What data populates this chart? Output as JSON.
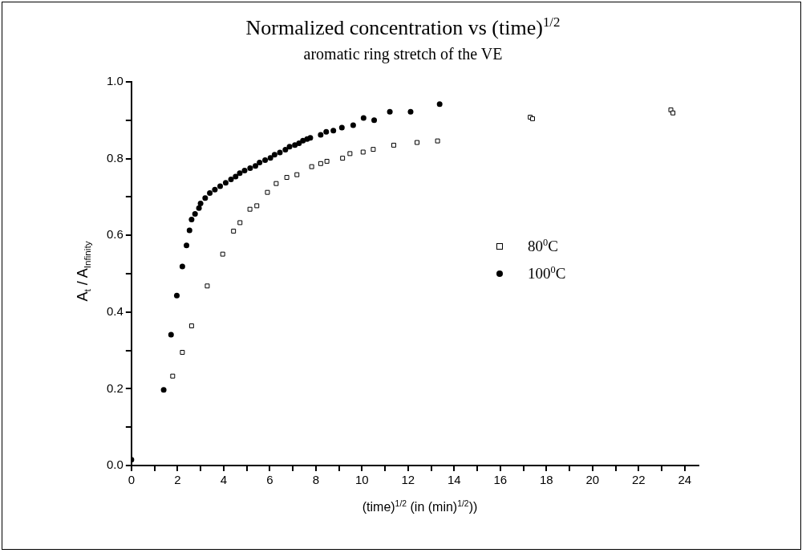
{
  "chart_data": {
    "type": "scatter",
    "title": "Normalized concentration vs (time)$^{1/2}$",
    "subtitle": "aromatic ring stretch of the VE",
    "xlabel": "(time)$^{1/2}$  (in (min)$^{1/2}$))",
    "ylabel": "A$_{t}$ / A$_{Infinity}$",
    "xlim": [
      0,
      24.6
    ],
    "ylim": [
      0,
      1
    ],
    "xticks": [
      0,
      {
        "value": 1,
        "label": null
      },
      2,
      {
        "value": 3,
        "label": null
      },
      4,
      {
        "value": 5,
        "label": null
      },
      6,
      {
        "value": 7,
        "label": null
      },
      8,
      {
        "value": 9,
        "label": null
      },
      10,
      {
        "value": 11,
        "label": null
      },
      12,
      {
        "value": 13,
        "label": null
      },
      14,
      {
        "value": 15,
        "label": null
      },
      16,
      {
        "value": 17,
        "label": null
      },
      18,
      {
        "value": 19,
        "label": null
      },
      20,
      {
        "value": 21,
        "label": null
      },
      22,
      {
        "value": 23,
        "label": null
      },
      24
    ],
    "yticks": [
      {
        "value": 0,
        "label": "0.0"
      },
      {
        "value": 0.1,
        "label": null
      },
      0.2,
      {
        "value": 0.3,
        "label": null
      },
      0.4,
      {
        "value": 0.5,
        "label": null
      },
      0.6,
      {
        "value": 0.7,
        "label": null
      },
      0.8,
      {
        "value": 0.9,
        "label": null
      },
      {
        "value": 1,
        "label": "1.0"
      }
    ],
    "grid": false,
    "legend": "right",
    "series": [
      {
        "name": "80$^{0}$C",
        "color": "#000000",
        "marker": "square",
        "x": [
          1.79,
          2.21,
          2.61,
          3.29,
          3.96,
          4.43,
          4.71,
          5.14,
          5.44,
          5.9,
          6.28,
          6.74,
          7.18,
          7.82,
          8.21,
          8.48,
          9.16,
          9.48,
          10.05,
          10.49,
          11.38,
          12.39,
          13.28,
          17.3,
          17.4,
          23.4,
          23.49
        ],
        "values": [
          0.233,
          0.295,
          0.364,
          0.468,
          0.551,
          0.611,
          0.633,
          0.668,
          0.677,
          0.712,
          0.735,
          0.751,
          0.758,
          0.779,
          0.787,
          0.793,
          0.801,
          0.813,
          0.817,
          0.824,
          0.835,
          0.842,
          0.846,
          0.908,
          0.904,
          0.927,
          0.919
        ]
      },
      {
        "name": "100$^{0}$C",
        "color": "#000000",
        "marker": "circle",
        "x": [
          0,
          1.4,
          1.72,
          1.97,
          2.21,
          2.39,
          2.52,
          2.61,
          2.76,
          2.93,
          3.0,
          3.2,
          3.4,
          3.62,
          3.85,
          4.09,
          4.32,
          4.52,
          4.7,
          4.91,
          5.15,
          5.38,
          5.56,
          5.8,
          6.03,
          6.21,
          6.44,
          6.68,
          6.86,
          7.09,
          7.27,
          7.44,
          7.62,
          7.76,
          8.21,
          8.45,
          8.76,
          9.13,
          9.62,
          10.07,
          10.53,
          11.21,
          12.11,
          13.37
        ],
        "values": [
          0.015,
          0.197,
          0.341,
          0.443,
          0.519,
          0.574,
          0.613,
          0.641,
          0.656,
          0.671,
          0.683,
          0.697,
          0.71,
          0.719,
          0.728,
          0.737,
          0.746,
          0.753,
          0.762,
          0.769,
          0.775,
          0.781,
          0.79,
          0.796,
          0.802,
          0.81,
          0.816,
          0.823,
          0.831,
          0.835,
          0.84,
          0.847,
          0.851,
          0.854,
          0.862,
          0.87,
          0.873,
          0.881,
          0.887,
          0.906,
          0.9,
          0.922,
          0.922,
          0.942
        ]
      }
    ]
  }
}
